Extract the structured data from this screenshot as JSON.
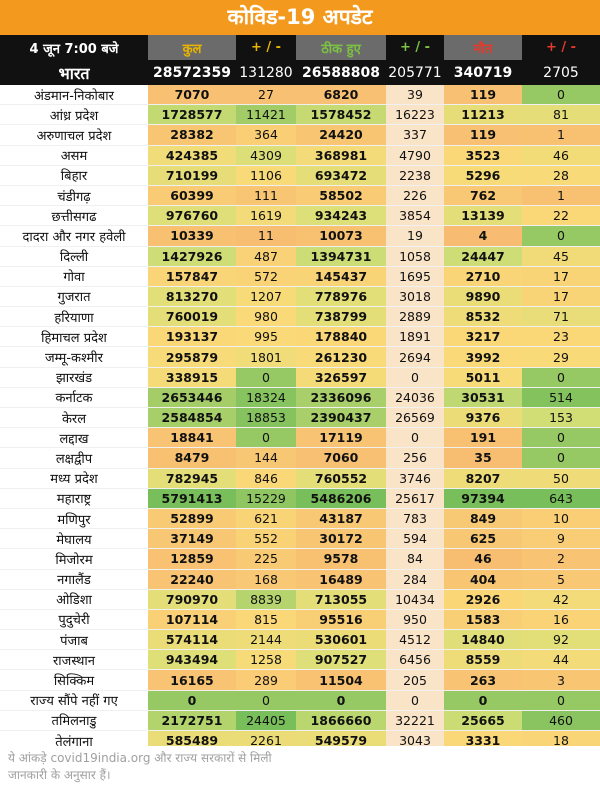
{
  "title": "कोविड-19 अपडेट",
  "header": {
    "date": "4 जून 7:00 बजे",
    "total": "कुल",
    "delta": "+ / -",
    "recovered": "ठीक हुए",
    "deaths": "मौत"
  },
  "national": {
    "name": "भारत",
    "total": "28572359",
    "total_delta": "131280",
    "recovered": "26588808",
    "recovered_delta": "205771",
    "deaths": "340719",
    "deaths_delta": "2705"
  },
  "colors": {
    "title_bg": "#f39a1e",
    "header_bg": "#111111",
    "total_header": "#e8b400",
    "recovered_header": "#7cc243",
    "deaths_header": "#e23b2b",
    "delta_header_total": "#e8b400",
    "delta_header_recovered": "#7cc243",
    "delta_header_deaths": "#e23b2b"
  },
  "states": [
    {
      "name": "अंडमान-निकोबार",
      "total": "7070",
      "total_delta": "27",
      "recovered": "6820",
      "recovered_delta": "39",
      "deaths": "119",
      "deaths_delta": "0"
    },
    {
      "name": "आंध्र प्रदेश",
      "total": "1728577",
      "total_delta": "11421",
      "recovered": "1578452",
      "recovered_delta": "16223",
      "deaths": "11213",
      "deaths_delta": "81"
    },
    {
      "name": "अरुणाचल प्रदेश",
      "total": "28382",
      "total_delta": "364",
      "recovered": "24420",
      "recovered_delta": "337",
      "deaths": "119",
      "deaths_delta": "1"
    },
    {
      "name": "असम",
      "total": "424385",
      "total_delta": "4309",
      "recovered": "368981",
      "recovered_delta": "4790",
      "deaths": "3523",
      "deaths_delta": "46"
    },
    {
      "name": "बिहार",
      "total": "710199",
      "total_delta": "1106",
      "recovered": "693472",
      "recovered_delta": "2238",
      "deaths": "5296",
      "deaths_delta": "28"
    },
    {
      "name": "चंडीगढ़",
      "total": "60399",
      "total_delta": "111",
      "recovered": "58502",
      "recovered_delta": "226",
      "deaths": "762",
      "deaths_delta": "1"
    },
    {
      "name": "छत्तीसगढ",
      "total": "976760",
      "total_delta": "1619",
      "recovered": "934243",
      "recovered_delta": "3854",
      "deaths": "13139",
      "deaths_delta": "22"
    },
    {
      "name": "दादरा और नगर हवेली",
      "total": "10339",
      "total_delta": "11",
      "recovered": "10073",
      "recovered_delta": "19",
      "deaths": "4",
      "deaths_delta": "0"
    },
    {
      "name": "दिल्ली",
      "total": "1427926",
      "total_delta": "487",
      "recovered": "1394731",
      "recovered_delta": "1058",
      "deaths": "24447",
      "deaths_delta": "45"
    },
    {
      "name": "गोवा",
      "total": "157847",
      "total_delta": "572",
      "recovered": "145437",
      "recovered_delta": "1695",
      "deaths": "2710",
      "deaths_delta": "17"
    },
    {
      "name": "गुजरात",
      "total": "813270",
      "total_delta": "1207",
      "recovered": "778976",
      "recovered_delta": "3018",
      "deaths": "9890",
      "deaths_delta": "17"
    },
    {
      "name": "हरियाणा",
      "total": "760019",
      "total_delta": "980",
      "recovered": "738799",
      "recovered_delta": "2889",
      "deaths": "8532",
      "deaths_delta": "71"
    },
    {
      "name": "हिमाचल प्रदेश",
      "total": "193137",
      "total_delta": "995",
      "recovered": "178840",
      "recovered_delta": "1891",
      "deaths": "3217",
      "deaths_delta": "23"
    },
    {
      "name": "जम्मू-कश्मीर",
      "total": "295879",
      "total_delta": "1801",
      "recovered": "261230",
      "recovered_delta": "2694",
      "deaths": "3992",
      "deaths_delta": "29"
    },
    {
      "name": "झारखंड",
      "total": "338915",
      "total_delta": "0",
      "recovered": "326597",
      "recovered_delta": "0",
      "deaths": "5011",
      "deaths_delta": "0"
    },
    {
      "name": "कर्नाटक",
      "total": "2653446",
      "total_delta": "18324",
      "recovered": "2336096",
      "recovered_delta": "24036",
      "deaths": "30531",
      "deaths_delta": "514"
    },
    {
      "name": "केरल",
      "total": "2584854",
      "total_delta": "18853",
      "recovered": "2390437",
      "recovered_delta": "26569",
      "deaths": "9376",
      "deaths_delta": "153"
    },
    {
      "name": "लद्दाख",
      "total": "18841",
      "total_delta": "0",
      "recovered": "17119",
      "recovered_delta": "0",
      "deaths": "191",
      "deaths_delta": "0"
    },
    {
      "name": "लक्षद्वीप",
      "total": "8479",
      "total_delta": "144",
      "recovered": "7060",
      "recovered_delta": "256",
      "deaths": "35",
      "deaths_delta": "0"
    },
    {
      "name": "मध्य प्रदेश",
      "total": "782945",
      "total_delta": "846",
      "recovered": "760552",
      "recovered_delta": "3746",
      "deaths": "8207",
      "deaths_delta": "50"
    },
    {
      "name": "महाराष्ट्र",
      "total": "5791413",
      "total_delta": "15229",
      "recovered": "5486206",
      "recovered_delta": "25617",
      "deaths": "97394",
      "deaths_delta": "643"
    },
    {
      "name": "मणिपुर",
      "total": "52899",
      "total_delta": "621",
      "recovered": "43187",
      "recovered_delta": "783",
      "deaths": "849",
      "deaths_delta": "10"
    },
    {
      "name": "मेघालय",
      "total": "37149",
      "total_delta": "552",
      "recovered": "30172",
      "recovered_delta": "594",
      "deaths": "625",
      "deaths_delta": "9"
    },
    {
      "name": "मिजोरम",
      "total": "12859",
      "total_delta": "225",
      "recovered": "9578",
      "recovered_delta": "84",
      "deaths": "46",
      "deaths_delta": "2"
    },
    {
      "name": "नगालैंड",
      "total": "22240",
      "total_delta": "168",
      "recovered": "16489",
      "recovered_delta": "284",
      "deaths": "404",
      "deaths_delta": "5"
    },
    {
      "name": "ओडिशा",
      "total": "790970",
      "total_delta": "8839",
      "recovered": "713055",
      "recovered_delta": "10434",
      "deaths": "2926",
      "deaths_delta": "42"
    },
    {
      "name": "पुदुचेरी",
      "total": "107114",
      "total_delta": "815",
      "recovered": "95516",
      "recovered_delta": "950",
      "deaths": "1583",
      "deaths_delta": "16"
    },
    {
      "name": "पंजाब",
      "total": "574114",
      "total_delta": "2144",
      "recovered": "530601",
      "recovered_delta": "4512",
      "deaths": "14840",
      "deaths_delta": "92"
    },
    {
      "name": "राजस्थान",
      "total": "943494",
      "total_delta": "1258",
      "recovered": "907527",
      "recovered_delta": "6456",
      "deaths": "8559",
      "deaths_delta": "44"
    },
    {
      "name": "सिक्किम",
      "total": "16165",
      "total_delta": "289",
      "recovered": "11504",
      "recovered_delta": "205",
      "deaths": "263",
      "deaths_delta": "3"
    },
    {
      "name": "राज्य सौंपे नहीं गए",
      "total": "0",
      "total_delta": "0",
      "recovered": "0",
      "recovered_delta": "0",
      "deaths": "0",
      "deaths_delta": "0"
    },
    {
      "name": "तमिलनाडु",
      "total": "2172751",
      "total_delta": "24405",
      "recovered": "1866660",
      "recovered_delta": "32221",
      "deaths": "25665",
      "deaths_delta": "460"
    },
    {
      "name": "तेलंगाना",
      "total": "585489",
      "total_delta": "2261",
      "recovered": "549579",
      "recovered_delta": "3043",
      "deaths": "3331",
      "deaths_delta": "18"
    }
  ],
  "footer": "ये आंकड़े covid19india.org और राज्य सरकारों से मिली जानकारी के अनुसार हैं।"
}
